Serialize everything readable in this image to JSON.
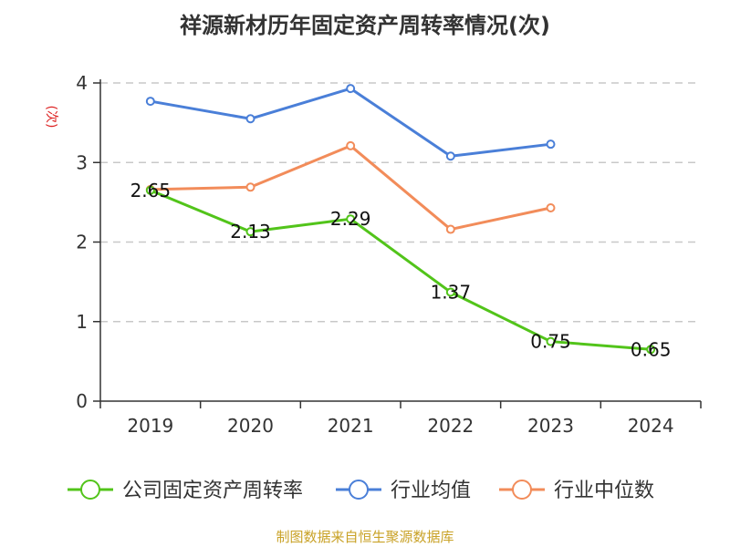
{
  "chart_data": {
    "type": "line",
    "title": "祥源新材历年固定资产周转率情况(次)",
    "ylabel": "(次)",
    "xlabel": "",
    "categories": [
      "2019",
      "2020",
      "2021",
      "2022",
      "2023",
      "2024"
    ],
    "ylim": [
      0,
      4
    ],
    "yticks": [
      0,
      1,
      2,
      3,
      4
    ],
    "grid": true,
    "legend_position": "bottom",
    "series": [
      {
        "name": "公司固定资产周转率",
        "color": "#52c41a",
        "values": [
          2.65,
          2.13,
          2.29,
          1.37,
          0.75,
          0.65
        ],
        "labels": [
          "2.65",
          "2.13",
          "2.29",
          "1.37",
          "0.75",
          "0.65"
        ]
      },
      {
        "name": "行业均值",
        "color": "#4a7fd8",
        "values": [
          3.77,
          3.55,
          3.93,
          3.08,
          3.23,
          null
        ]
      },
      {
        "name": "行业中位数",
        "color": "#f28c5a",
        "values": [
          2.66,
          2.69,
          3.21,
          2.16,
          2.43,
          null
        ]
      }
    ],
    "source": "制图数据来自恒生聚源数据库"
  }
}
